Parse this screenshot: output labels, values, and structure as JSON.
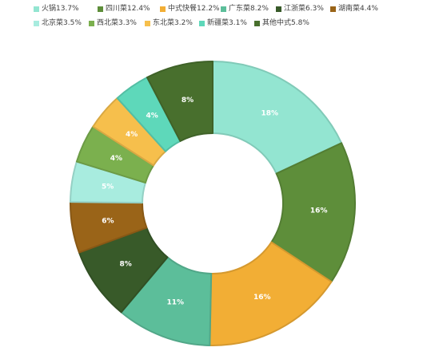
{
  "chart_data": {
    "type": "pie",
    "style": "donut",
    "start_angle": "top",
    "direction": "clockwise",
    "legend_position": "top",
    "categories": [
      "火锅",
      "四川菜",
      "中式快餐",
      "广东菜",
      "江浙菜",
      "湖南菜",
      "北京菜",
      "西北菜",
      "东北菜",
      "新疆菜",
      "其他中式"
    ],
    "values": [
      13.7,
      12.4,
      12.2,
      8.2,
      6.3,
      4.4,
      3.5,
      3.3,
      3.2,
      3.1,
      5.8
    ],
    "legend_values": [
      "13.7%",
      "12.4%",
      "12.2%",
      "8.2%",
      "6.3%",
      "4.4%",
      "3.5%",
      "3.3%",
      "3.2%",
      "3.1%",
      "5.8%"
    ],
    "data_labels": [
      "18%",
      "16%",
      "16%",
      "11%",
      "8%",
      "6%",
      "5%",
      "4%",
      "4%",
      "4%",
      "8%"
    ],
    "colors": [
      "#93E5D1",
      "#5E8E3A",
      "#F2AE35",
      "#5CBE9A",
      "#385A29",
      "#9A6418",
      "#A8ECDF",
      "#7BB04E",
      "#F6BF4C",
      "#5ED8BA",
      "#486F2D"
    ]
  }
}
